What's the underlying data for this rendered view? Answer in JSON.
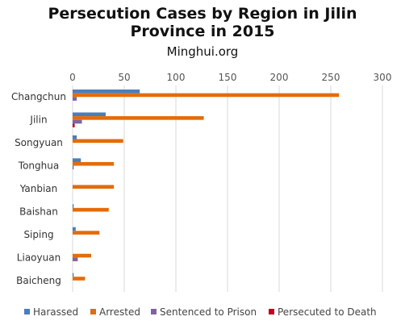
{
  "chart_data": {
    "type": "bar",
    "orientation": "horizontal",
    "title_lines": [
      "Persecution Cases by Region in Jilin",
      "Province in 2015"
    ],
    "subtitle": "Minghui.org",
    "categories": [
      "Changchun",
      "Jilin",
      "Songyuan",
      "Tonghua",
      "Yanbian",
      "Baishan",
      "Siping",
      "Liaoyuan",
      "Baicheng"
    ],
    "series": [
      {
        "name": "Harassed",
        "color": "#4a7ebb",
        "values": [
          65,
          32,
          4,
          8,
          0,
          1,
          3,
          0,
          1
        ]
      },
      {
        "name": "Arrested",
        "color": "#e46c0a",
        "values": [
          258,
          127,
          49,
          40,
          40,
          35,
          26,
          18,
          12
        ]
      },
      {
        "name": "Sentenced to Prison",
        "color": "#8064a2",
        "values": [
          4,
          9,
          0,
          1,
          0,
          0,
          0,
          5,
          0
        ]
      },
      {
        "name": "Persecuted to Death",
        "color": "#c0001f",
        "values": [
          0,
          2,
          0,
          0,
          0,
          0,
          0,
          0,
          0
        ]
      }
    ],
    "xlim": [
      0,
      300
    ],
    "xticks": [
      0,
      50,
      100,
      150,
      200,
      250,
      300
    ],
    "grid": true,
    "legend_position": "bottom"
  }
}
